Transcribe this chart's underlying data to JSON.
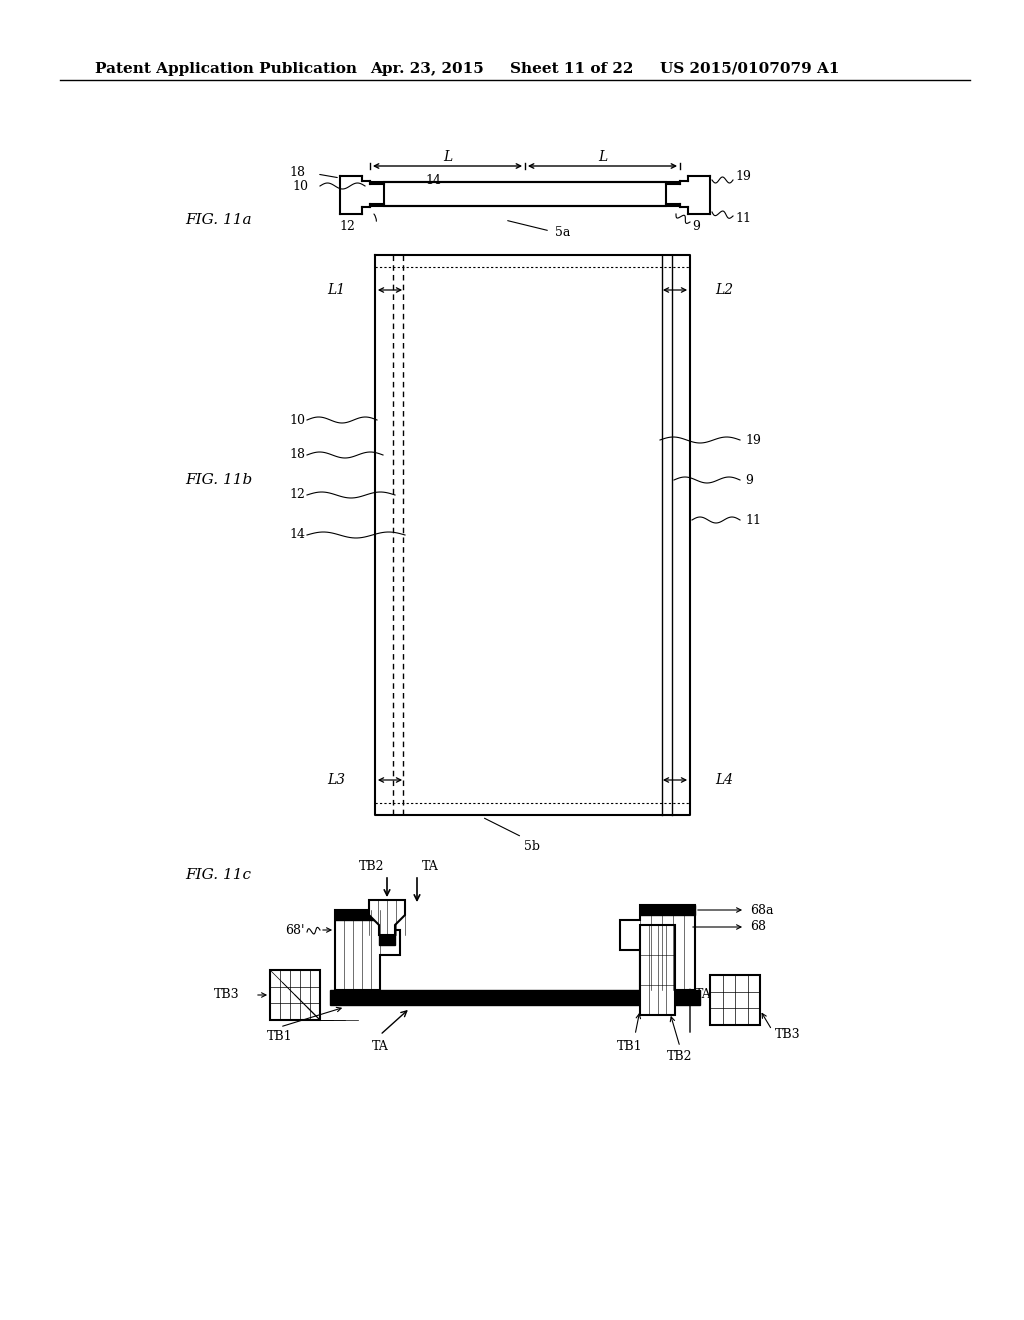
{
  "bg_color": "#ffffff",
  "header_text": "Patent Application Publication",
  "header_date": "Apr. 23, 2015",
  "header_sheet": "Sheet 11 of 22",
  "header_patent": "US 2015/0107079 A1",
  "fig11a_label": "FIG. 11a",
  "fig11b_label": "FIG. 11b",
  "fig11c_label": "FIG. 11c"
}
